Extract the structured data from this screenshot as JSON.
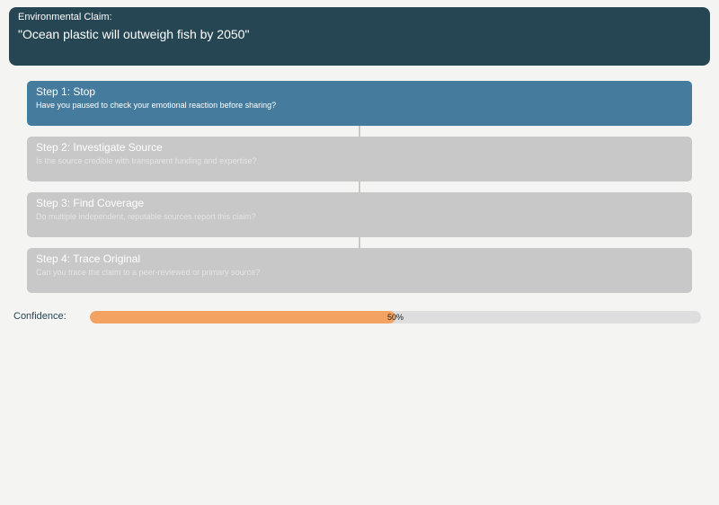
{
  "claim": {
    "label": "Environmental Claim:",
    "text": "\"Ocean plastic will outweigh fish by 2050\""
  },
  "steps": [
    {
      "title": "Step 1: Stop",
      "question": "Have you paused to check your emotional reaction before sharing?",
      "state": "active"
    },
    {
      "title": "Step 2: Investigate Source",
      "question": "Is the source credible with transparent funding and expertise?",
      "state": "inactive"
    },
    {
      "title": "Step 3: Find Coverage",
      "question": "Do multiple independent, reputable sources report this claim?",
      "state": "inactive"
    },
    {
      "title": "Step 4: Trace Original",
      "question": "Can you trace the claim to a peer-reviewed or primary source?",
      "state": "inactive"
    }
  ],
  "confidence": {
    "label": "Confidence:",
    "value_text": "50%",
    "fraction": 0.5
  },
  "colors": {
    "header_bg": "#264653",
    "active_step": "#457b9d",
    "inactive_step": "#c8c8c8",
    "meter_fill": "#f4a261",
    "meter_track": "#dedede"
  }
}
